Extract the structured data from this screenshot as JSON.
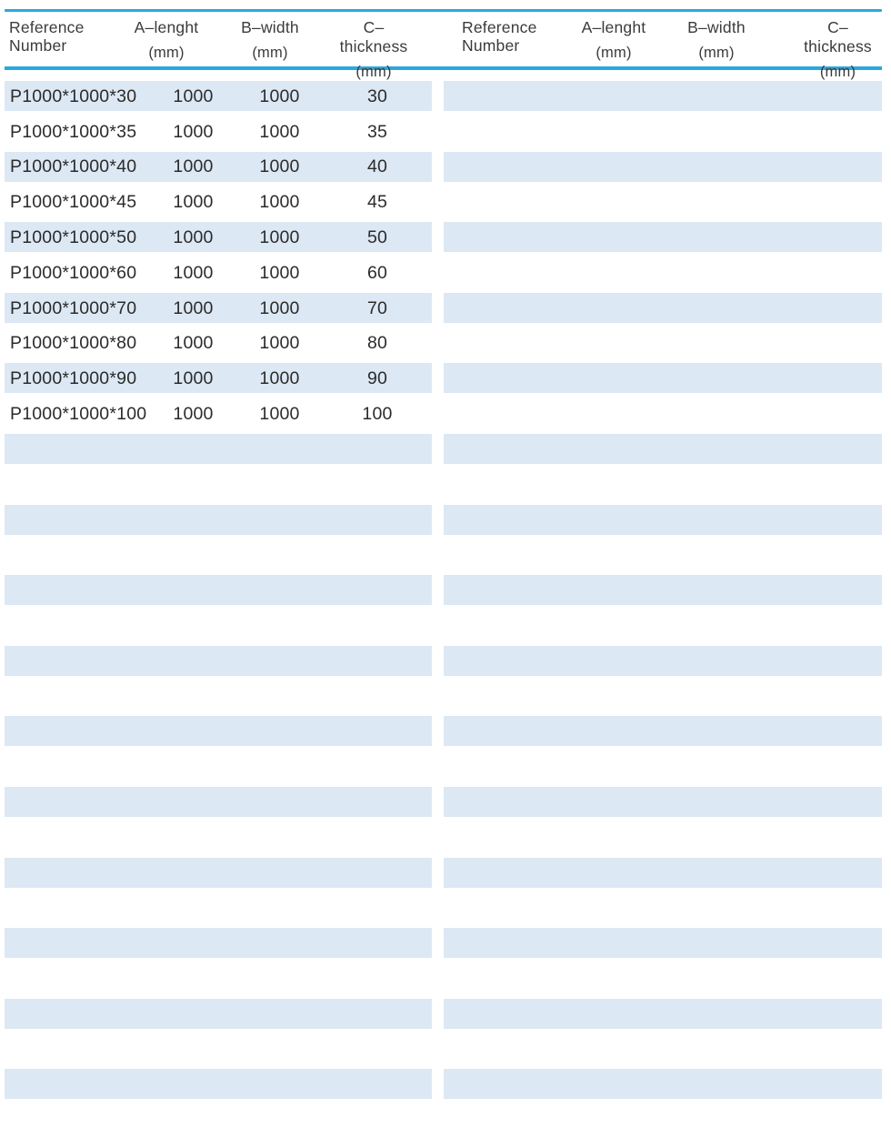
{
  "colors": {
    "accent": "#2aa8e0",
    "row_shade": "#dce8f4",
    "header_text": "#3b3b3b",
    "data_text": "#2b2b2b",
    "paper": "#ffffff"
  },
  "tables": [
    {
      "title": "left-dimensions-table",
      "header": {
        "ref_line1": "Reference",
        "ref_line2": "Number",
        "col_a_label": "A–lenght",
        "col_a_unit": "(mm)",
        "col_b_label": "B–width",
        "col_b_unit": "(mm)",
        "col_c_label": "C–thickness",
        "col_c_unit": "(mm)"
      },
      "rows": [
        {
          "ref": "P1000*1000*30",
          "a": "1000",
          "b": "1000",
          "c": "30"
        },
        {
          "ref": "P1000*1000*35",
          "a": "1000",
          "b": "1000",
          "c": "35"
        },
        {
          "ref": "P1000*1000*40",
          "a": "1000",
          "b": "1000",
          "c": "40"
        },
        {
          "ref": "P1000*1000*45",
          "a": "1000",
          "b": "1000",
          "c": "45"
        },
        {
          "ref": "P1000*1000*50",
          "a": "1000",
          "b": "1000",
          "c": "50"
        },
        {
          "ref": "P1000*1000*60",
          "a": "1000",
          "b": "1000",
          "c": "60"
        },
        {
          "ref": "P1000*1000*70",
          "a": "1000",
          "b": "1000",
          "c": "70"
        },
        {
          "ref": "P1000*1000*80",
          "a": "1000",
          "b": "1000",
          "c": "80"
        },
        {
          "ref": "P1000*1000*90",
          "a": "1000",
          "b": "1000",
          "c": "90"
        },
        {
          "ref": "P1000*1000*100",
          "a": "1000",
          "b": "1000",
          "c": "100"
        }
      ],
      "total_row_slots": 30
    },
    {
      "title": "right-dimensions-table",
      "header": {
        "ref_line1": "Reference",
        "ref_line2": "Number",
        "col_a_label": "A–lenght",
        "col_a_unit": "(mm)",
        "col_b_label": "B–width",
        "col_b_unit": "(mm)",
        "col_c_label": "C–thickness",
        "col_c_unit": "(mm)"
      },
      "rows": [],
      "total_row_slots": 30
    }
  ]
}
